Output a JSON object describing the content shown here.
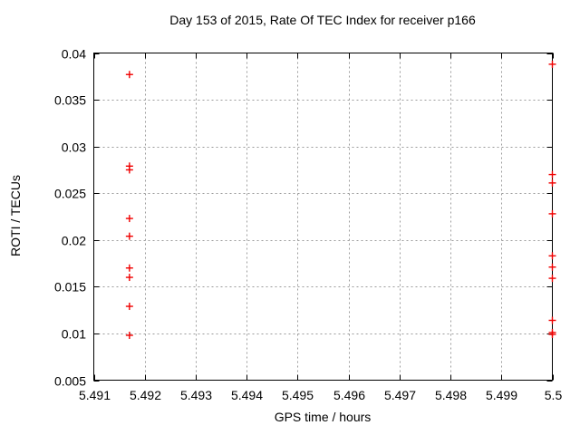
{
  "chart_data": {
    "type": "scatter",
    "title": "Day 153 of 2015, Rate Of TEC Index for receiver p166",
    "xlabel": "GPS time / hours",
    "ylabel": "ROTI / TECUs",
    "xlim": [
      5.491,
      5.5
    ],
    "ylim": [
      0.005,
      0.04
    ],
    "grid": "dashed",
    "legend": "none",
    "marker": "plus",
    "colors": {
      "marker": "#f00000",
      "grid": "#9b9b9b",
      "axis": "#000000",
      "text": "#000000",
      "background": "#ffffff"
    },
    "xticks": [
      {
        "value": 5.491,
        "label": "5.491"
      },
      {
        "value": 5.492,
        "label": "5.492"
      },
      {
        "value": 5.493,
        "label": "5.493"
      },
      {
        "value": 5.494,
        "label": "5.494"
      },
      {
        "value": 5.495,
        "label": "5.495"
      },
      {
        "value": 5.496,
        "label": "5.496"
      },
      {
        "value": 5.497,
        "label": "5.497"
      },
      {
        "value": 5.498,
        "label": "5.498"
      },
      {
        "value": 5.499,
        "label": "5.499"
      },
      {
        "value": 5.5,
        "label": "5.5"
      }
    ],
    "yticks": [
      {
        "value": 0.005,
        "label": "0.005"
      },
      {
        "value": 0.01,
        "label": "0.01"
      },
      {
        "value": 0.015,
        "label": "0.015"
      },
      {
        "value": 0.02,
        "label": "0.02"
      },
      {
        "value": 0.025,
        "label": "0.025"
      },
      {
        "value": 0.03,
        "label": "0.03"
      },
      {
        "value": 0.035,
        "label": "0.035"
      },
      {
        "value": 0.04,
        "label": "0.04"
      }
    ],
    "series": [
      {
        "name": "ROTI",
        "points": [
          [
            5.4917,
            0.0377
          ],
          [
            5.4917,
            0.0279
          ],
          [
            5.4917,
            0.0275
          ],
          [
            5.4917,
            0.0223
          ],
          [
            5.4917,
            0.0204
          ],
          [
            5.4917,
            0.017
          ],
          [
            5.4917,
            0.016
          ],
          [
            5.4917,
            0.0129
          ],
          [
            5.4917,
            0.0098
          ],
          [
            5.5,
            0.0388
          ],
          [
            5.5,
            0.027
          ],
          [
            5.5,
            0.0261
          ],
          [
            5.5,
            0.0228
          ],
          [
            5.5,
            0.0183
          ],
          [
            5.5,
            0.0171
          ],
          [
            5.5,
            0.0159
          ],
          [
            5.5,
            0.0114
          ],
          [
            5.5,
            0.0101
          ],
          [
            5.5,
            0.0099
          ]
        ]
      }
    ]
  }
}
